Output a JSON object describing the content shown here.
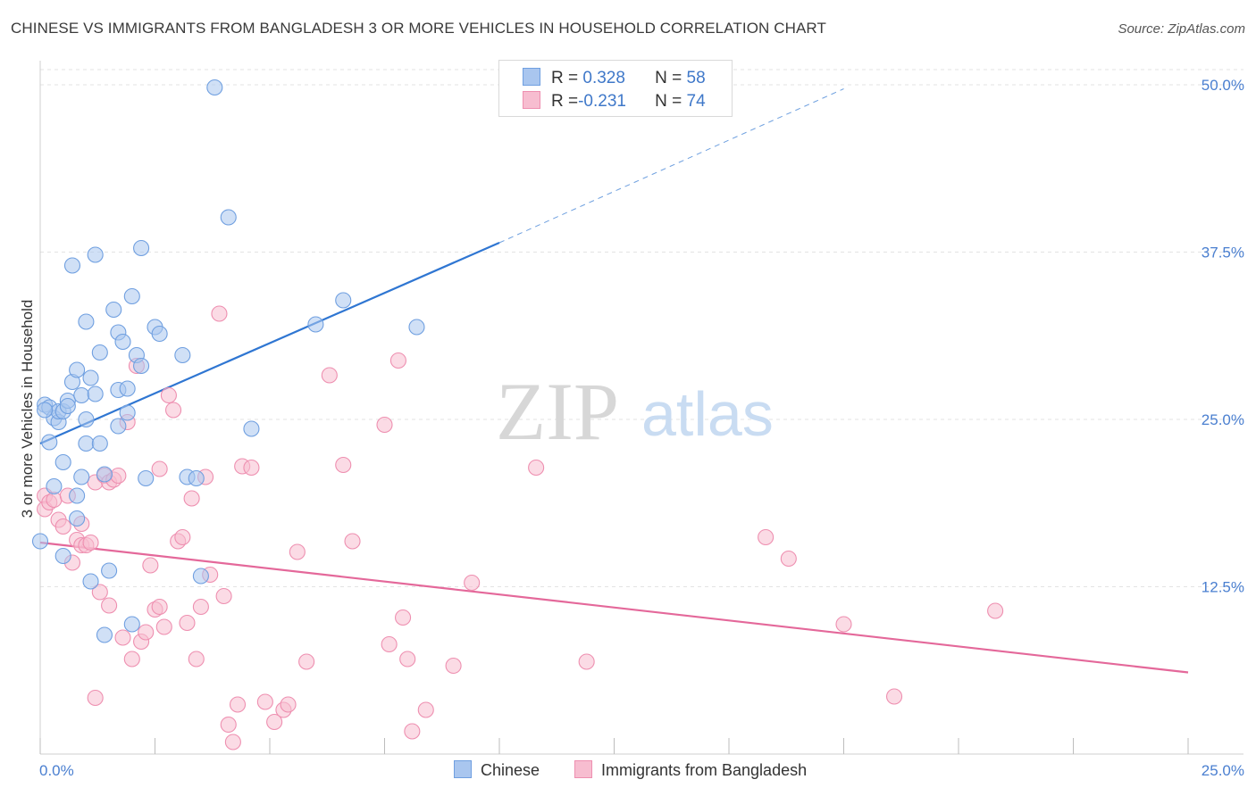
{
  "title": "CHINESE VS IMMIGRANTS FROM BANGLADESH 3 OR MORE VEHICLES IN HOUSEHOLD CORRELATION CHART",
  "source": "Source: ZipAtlas.com",
  "watermark": {
    "zip": "ZIP",
    "atlas": "atlas"
  },
  "colors": {
    "chinese_fill": "#a9c6ef",
    "chinese_stroke": "#6f9fe0",
    "chinese_line": "#2f76d2",
    "bangladesh_fill": "#f7bdd0",
    "bangladesh_stroke": "#ee8fb0",
    "bangladesh_line": "#e4689a",
    "tick_text": "#4a7fd0",
    "grid": "#e3e3e3"
  },
  "legend": {
    "rows": [
      {
        "r_label": "R =",
        "r_value": " 0.328",
        "n_label": "N =",
        "n_value": "58"
      },
      {
        "r_label": "R =",
        "r_value": "-0.231",
        "n_label": "N =",
        "n_value": "74"
      }
    ]
  },
  "bottom_legend": {
    "series1": "Chinese",
    "series2": "Immigrants from Bangladesh"
  },
  "chart_data": {
    "type": "scatter",
    "title": "CHINESE VS IMMIGRANTS FROM BANGLADESH 3 OR MORE VEHICLES IN HOUSEHOLD CORRELATION CHART",
    "xlabel": "",
    "ylabel": "3 or more Vehicles in Household",
    "xlim": [
      0,
      25
    ],
    "ylim": [
      0,
      50
    ],
    "x_tick_labels": [
      "0.0%",
      "25.0%"
    ],
    "y_ticks": [
      12.5,
      25.0,
      37.5,
      50.0
    ],
    "y_tick_labels": [
      "12.5%",
      "25.0%",
      "37.5%",
      "50.0%"
    ],
    "grid": true,
    "legend_position": "top-center",
    "series": [
      {
        "name": "Chinese",
        "r": 0.328,
        "n": 58,
        "trend": {
          "x0": 0,
          "y0": 23.2,
          "x1": 10,
          "y1": 38.2,
          "dashed_to_x": 17.5,
          "dashed_to_y": 49.7
        },
        "points": [
          [
            0.0,
            15.9
          ],
          [
            0.1,
            26.1
          ],
          [
            0.2,
            23.3
          ],
          [
            0.2,
            25.9
          ],
          [
            0.3,
            25.1
          ],
          [
            0.3,
            20.0
          ],
          [
            0.4,
            24.8
          ],
          [
            0.4,
            25.6
          ],
          [
            0.5,
            21.8
          ],
          [
            0.5,
            14.8
          ],
          [
            0.5,
            25.6
          ],
          [
            0.6,
            26.4
          ],
          [
            0.6,
            26.0
          ],
          [
            0.7,
            36.5
          ],
          [
            0.7,
            27.8
          ],
          [
            0.8,
            28.7
          ],
          [
            0.8,
            19.3
          ],
          [
            0.8,
            17.6
          ],
          [
            0.9,
            20.7
          ],
          [
            0.9,
            26.8
          ],
          [
            1.0,
            25.0
          ],
          [
            1.0,
            32.3
          ],
          [
            1.0,
            23.2
          ],
          [
            1.1,
            28.1
          ],
          [
            1.1,
            12.9
          ],
          [
            1.2,
            26.9
          ],
          [
            1.2,
            37.3
          ],
          [
            1.3,
            23.2
          ],
          [
            1.3,
            30.0
          ],
          [
            1.4,
            8.9
          ],
          [
            1.4,
            20.9
          ],
          [
            1.5,
            13.7
          ],
          [
            1.6,
            33.2
          ],
          [
            1.7,
            24.5
          ],
          [
            1.7,
            27.2
          ],
          [
            1.7,
            31.5
          ],
          [
            1.8,
            30.8
          ],
          [
            1.9,
            25.5
          ],
          [
            1.9,
            27.3
          ],
          [
            2.0,
            34.2
          ],
          [
            2.0,
            9.7
          ],
          [
            2.1,
            29.8
          ],
          [
            2.2,
            37.8
          ],
          [
            2.2,
            29.0
          ],
          [
            2.3,
            20.6
          ],
          [
            2.5,
            31.9
          ],
          [
            2.6,
            31.4
          ],
          [
            3.1,
            29.8
          ],
          [
            3.2,
            20.7
          ],
          [
            3.4,
            20.6
          ],
          [
            3.5,
            13.3
          ],
          [
            3.8,
            49.8
          ],
          [
            4.1,
            40.1
          ],
          [
            4.6,
            24.3
          ],
          [
            6.0,
            32.1
          ],
          [
            6.6,
            33.9
          ],
          [
            8.2,
            31.9
          ],
          [
            0.1,
            25.7
          ]
        ]
      },
      {
        "name": "Immigrants from Bangladesh",
        "r": -0.231,
        "n": 74,
        "trend": {
          "x0": 0,
          "y0": 15.8,
          "x1": 25,
          "y1": 6.1
        },
        "points": [
          [
            0.1,
            19.3
          ],
          [
            0.1,
            18.3
          ],
          [
            0.2,
            18.8
          ],
          [
            0.3,
            19.0
          ],
          [
            0.4,
            17.5
          ],
          [
            0.5,
            17.0
          ],
          [
            0.6,
            19.3
          ],
          [
            0.7,
            14.3
          ],
          [
            0.8,
            16.0
          ],
          [
            0.9,
            15.6
          ],
          [
            0.9,
            17.2
          ],
          [
            1.0,
            15.6
          ],
          [
            1.1,
            15.8
          ],
          [
            1.2,
            4.2
          ],
          [
            1.2,
            20.3
          ],
          [
            1.3,
            12.1
          ],
          [
            1.4,
            20.8
          ],
          [
            1.5,
            20.3
          ],
          [
            1.5,
            11.1
          ],
          [
            1.6,
            20.5
          ],
          [
            1.7,
            20.8
          ],
          [
            1.8,
            8.7
          ],
          [
            1.9,
            24.8
          ],
          [
            2.0,
            7.1
          ],
          [
            2.1,
            29.0
          ],
          [
            2.2,
            8.4
          ],
          [
            2.3,
            9.1
          ],
          [
            2.4,
            14.1
          ],
          [
            2.5,
            10.8
          ],
          [
            2.6,
            11.0
          ],
          [
            2.6,
            21.3
          ],
          [
            2.7,
            9.5
          ],
          [
            2.8,
            26.8
          ],
          [
            2.9,
            25.7
          ],
          [
            3.0,
            15.9
          ],
          [
            3.1,
            16.2
          ],
          [
            3.2,
            9.8
          ],
          [
            3.3,
            19.1
          ],
          [
            3.4,
            7.1
          ],
          [
            3.5,
            11.0
          ],
          [
            3.6,
            20.7
          ],
          [
            3.7,
            13.4
          ],
          [
            3.9,
            32.9
          ],
          [
            4.0,
            11.8
          ],
          [
            4.1,
            2.2
          ],
          [
            4.2,
            0.9
          ],
          [
            4.3,
            3.7
          ],
          [
            4.4,
            21.5
          ],
          [
            4.6,
            21.4
          ],
          [
            4.9,
            3.9
          ],
          [
            5.1,
            2.4
          ],
          [
            5.3,
            3.3
          ],
          [
            5.4,
            3.7
          ],
          [
            5.6,
            15.1
          ],
          [
            5.8,
            6.9
          ],
          [
            6.3,
            28.3
          ],
          [
            6.6,
            21.6
          ],
          [
            6.8,
            15.9
          ],
          [
            7.5,
            24.6
          ],
          [
            7.6,
            8.2
          ],
          [
            7.8,
            29.4
          ],
          [
            7.9,
            10.2
          ],
          [
            8.0,
            7.1
          ],
          [
            8.1,
            1.7
          ],
          [
            8.4,
            3.3
          ],
          [
            9.0,
            6.6
          ],
          [
            9.4,
            12.8
          ],
          [
            10.8,
            21.4
          ],
          [
            11.9,
            6.9
          ],
          [
            15.8,
            16.2
          ],
          [
            16.3,
            14.6
          ],
          [
            17.5,
            9.7
          ],
          [
            18.6,
            4.3
          ],
          [
            20.8,
            10.7
          ]
        ]
      }
    ]
  }
}
